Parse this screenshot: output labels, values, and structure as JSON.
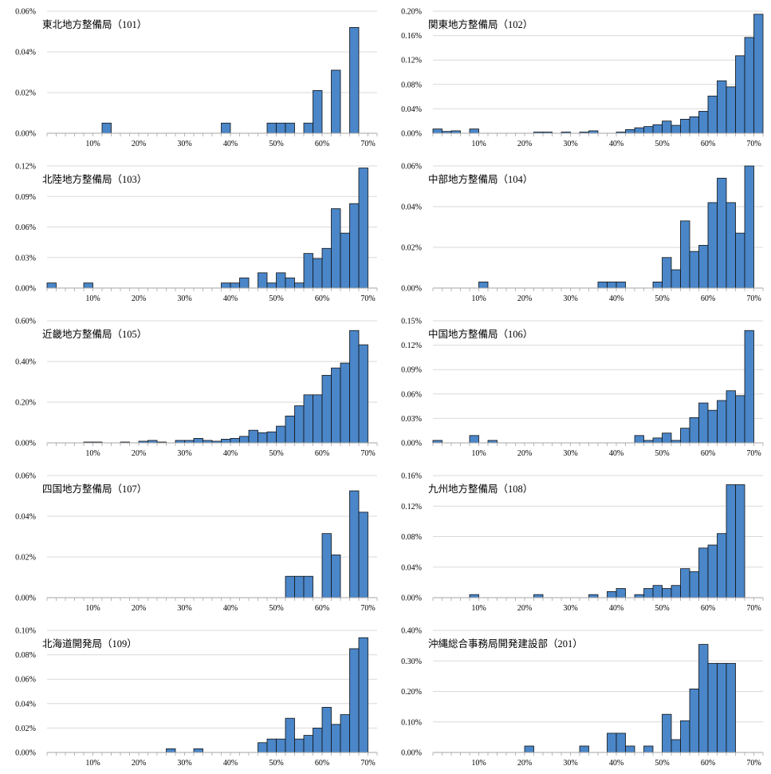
{
  "chart_data": [
    {
      "type": "bar",
      "title": "東北地方整備局（101）",
      "ylim": [
        0,
        0.06
      ],
      "yticks": [
        "0.00%",
        "0.02%",
        "0.04%",
        "0.06%"
      ],
      "xticks": [
        "10%",
        "20%",
        "30%",
        "40%",
        "50%",
        "60%",
        "70%"
      ],
      "values": [
        0,
        0,
        0,
        0,
        0,
        0,
        0.005,
        0,
        0,
        0,
        0,
        0,
        0,
        0,
        0,
        0,
        0,
        0,
        0,
        0.005,
        0,
        0,
        0,
        0,
        0.005,
        0.005,
        0.005,
        0,
        0.005,
        0.021,
        0,
        0.031,
        0,
        0.052
      ]
    },
    {
      "type": "bar",
      "title": "関東地方整備局（102）",
      "ylim": [
        0,
        0.2
      ],
      "yticks": [
        "0.00%",
        "0.04%",
        "0.08%",
        "0.12%",
        "0.16%",
        "0.20%"
      ],
      "xticks": [
        "10%",
        "20%",
        "30%",
        "40%",
        "50%",
        "60%",
        "70%"
      ],
      "values": [
        0.007,
        0.003,
        0.004,
        0,
        0.007,
        0,
        0,
        0,
        0,
        0,
        0,
        0.002,
        0.002,
        0,
        0.002,
        0,
        0.002,
        0.004,
        0,
        0,
        0.002,
        0.006,
        0.009,
        0.011,
        0.014,
        0.02,
        0.013,
        0.023,
        0.027,
        0.036,
        0.061,
        0.086,
        0.076,
        0.127,
        0.157,
        0.195
      ]
    },
    {
      "type": "bar",
      "title": "北陸地方整備局（103）",
      "ylim": [
        0,
        0.12
      ],
      "yticks": [
        "0.00%",
        "0.03%",
        "0.06%",
        "0.09%",
        "0.12%"
      ],
      "xticks": [
        "10%",
        "20%",
        "30%",
        "40%",
        "50%",
        "60%",
        "70%"
      ],
      "values": [
        0.005,
        0,
        0,
        0,
        0.005,
        0,
        0,
        0,
        0,
        0,
        0,
        0,
        0,
        0,
        0,
        0,
        0,
        0,
        0,
        0.005,
        0.005,
        0.01,
        0,
        0.015,
        0.005,
        0.015,
        0.01,
        0.005,
        0.034,
        0.029,
        0.039,
        0.078,
        0.054,
        0.083,
        0.118
      ]
    },
    {
      "type": "bar",
      "title": "中部地方整備局（104）",
      "ylim": [
        0,
        0.06
      ],
      "yticks": [
        "0.00%",
        "0.02%",
        "0.04%",
        "0.06%"
      ],
      "xticks": [
        "10%",
        "20%",
        "30%",
        "40%",
        "50%",
        "60%",
        "70%"
      ],
      "values": [
        0,
        0,
        0,
        0,
        0,
        0.003,
        0,
        0,
        0,
        0,
        0,
        0,
        0,
        0,
        0,
        0,
        0,
        0,
        0.003,
        0.003,
        0.003,
        0,
        0,
        0,
        0.003,
        0.015,
        0.009,
        0.033,
        0.018,
        0.021,
        0.042,
        0.054,
        0.042,
        0.027,
        0.06
      ]
    },
    {
      "type": "bar",
      "title": "近畿地方整備局（105）",
      "ylim": [
        0,
        0.6
      ],
      "yticks": [
        "0.00%",
        "0.20%",
        "0.40%",
        "0.60%"
      ],
      "xticks": [
        "10%",
        "20%",
        "30%",
        "40%",
        "50%",
        "60%",
        "70%"
      ],
      "values": [
        0,
        0,
        0,
        0,
        0.004,
        0.004,
        0,
        0,
        0.004,
        0,
        0.008,
        0.012,
        0.004,
        0,
        0.012,
        0.012,
        0.022,
        0.012,
        0.008,
        0.018,
        0.022,
        0.032,
        0.062,
        0.05,
        0.054,
        0.082,
        0.132,
        0.182,
        0.236,
        0.236,
        0.332,
        0.368,
        0.392,
        0.552,
        0.482
      ]
    },
    {
      "type": "bar",
      "title": "中国地方整備局（106）",
      "ylim": [
        0,
        0.15
      ],
      "yticks": [
        "0.00%",
        "0.03%",
        "0.06%",
        "0.09%",
        "0.12%",
        "0.15%"
      ],
      "xticks": [
        "10%",
        "20%",
        "30%",
        "40%",
        "50%",
        "60%",
        "70%"
      ],
      "values": [
        0.003,
        0,
        0,
        0,
        0.009,
        0,
        0.003,
        0,
        0,
        0,
        0,
        0,
        0,
        0,
        0,
        0,
        0,
        0,
        0,
        0,
        0,
        0,
        0.009,
        0.003,
        0.006,
        0.012,
        0.003,
        0.018,
        0.031,
        0.049,
        0.04,
        0.052,
        0.064,
        0.058,
        0.138
      ]
    },
    {
      "type": "bar",
      "title": "四国地方整備局（107）",
      "ylim": [
        0,
        0.06
      ],
      "yticks": [
        "0.00%",
        "0.02%",
        "0.04%",
        "0.06%"
      ],
      "xticks": [
        "10%",
        "20%",
        "30%",
        "40%",
        "50%",
        "60%",
        "70%"
      ],
      "values": [
        0,
        0,
        0,
        0,
        0,
        0,
        0,
        0,
        0,
        0,
        0,
        0,
        0,
        0,
        0,
        0,
        0,
        0,
        0,
        0,
        0,
        0,
        0,
        0,
        0,
        0,
        0.0105,
        0.0105,
        0.0105,
        0,
        0.0315,
        0.021,
        0,
        0.0525,
        0.042
      ]
    },
    {
      "type": "bar",
      "title": "九州地方整備局（108）",
      "ylim": [
        0,
        0.16
      ],
      "yticks": [
        "0.00%",
        "0.04%",
        "0.08%",
        "0.12%",
        "0.16%"
      ],
      "xticks": [
        "10%",
        "20%",
        "30%",
        "40%",
        "50%",
        "60%",
        "70%"
      ],
      "values": [
        0,
        0,
        0,
        0,
        0.004,
        0,
        0,
        0,
        0,
        0,
        0,
        0.004,
        0,
        0,
        0,
        0,
        0,
        0.004,
        0,
        0.008,
        0.012,
        0,
        0.004,
        0.012,
        0.016,
        0.012,
        0.016,
        0.038,
        0.034,
        0.065,
        0.069,
        0.084,
        0.148,
        0.148
      ]
    },
    {
      "type": "bar",
      "title": "北海道開発局（109）",
      "ylim": [
        0,
        0.1
      ],
      "yticks": [
        "0.00%",
        "0.02%",
        "0.04%",
        "0.06%",
        "0.08%",
        "0.10%"
      ],
      "xticks": [
        "10%",
        "20%",
        "30%",
        "40%",
        "50%",
        "60%",
        "70%"
      ],
      "values": [
        0,
        0,
        0,
        0,
        0,
        0,
        0,
        0,
        0,
        0,
        0,
        0,
        0,
        0.003,
        0,
        0,
        0.003,
        0,
        0,
        0,
        0,
        0,
        0,
        0.008,
        0.011,
        0.011,
        0.028,
        0.011,
        0.014,
        0.02,
        0.037,
        0.023,
        0.031,
        0.085,
        0.094
      ]
    },
    {
      "type": "bar",
      "title": "沖縄総合事務局開発建設部（201）",
      "ylim": [
        0,
        0.4
      ],
      "yticks": [
        "0.00%",
        "0.10%",
        "0.20%",
        "0.30%",
        "0.40%"
      ],
      "xticks": [
        "10%",
        "20%",
        "30%",
        "40%",
        "50%",
        "60%",
        "70%"
      ],
      "values": [
        0,
        0,
        0,
        0,
        0,
        0,
        0,
        0,
        0,
        0,
        0.021,
        0,
        0,
        0,
        0,
        0,
        0.021,
        0,
        0,
        0.063,
        0.063,
        0.021,
        0,
        0.021,
        0,
        0.125,
        0.042,
        0.104,
        0.208,
        0.354,
        0.292,
        0.292,
        0.292
      ]
    }
  ]
}
